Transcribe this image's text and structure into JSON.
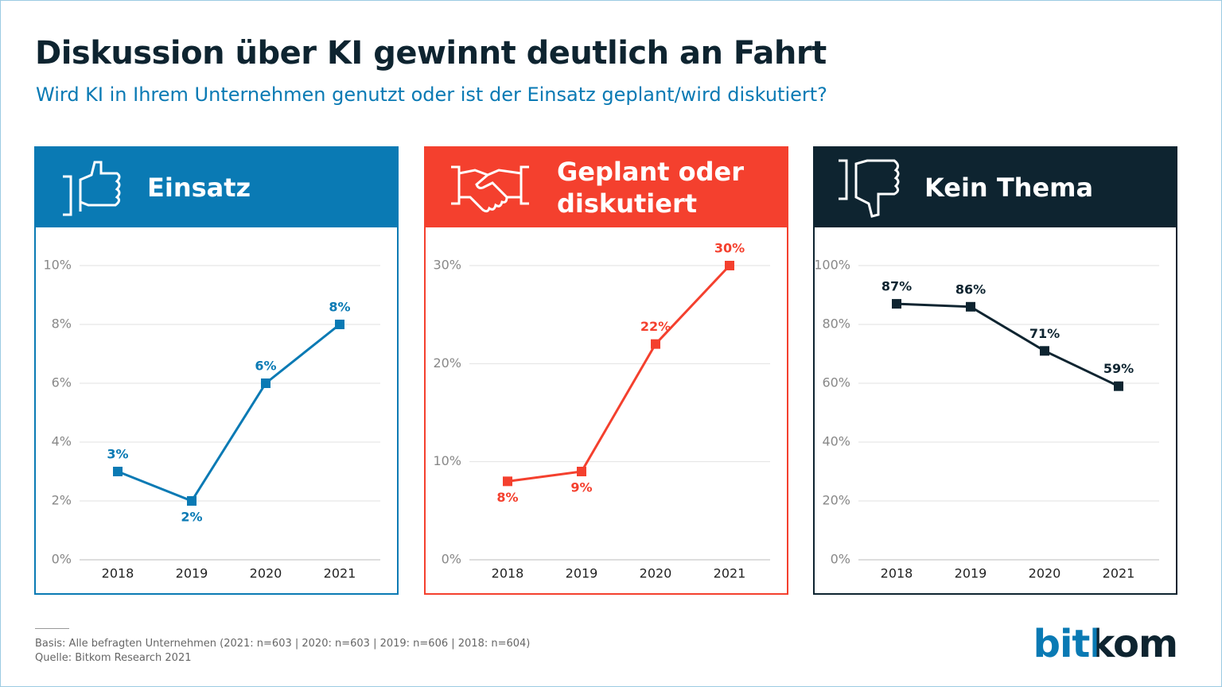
{
  "title": "Diskussion über KI gewinnt deutlich an Fahrt",
  "subtitle": "Wird KI in Ihrem Unternehmen genutzt oder ist der Einsatz geplant/wird diskutiert?",
  "notes": [
    "Basis: Alle befragten Unternehmen (2021: n=603 | 2020: n=603 | 2019: n=606 | 2018: n=604)",
    "Quelle: Bitkom Research 2021"
  ],
  "logo": "bitkom",
  "chart_data": [
    {
      "type": "line",
      "title": "Einsatz",
      "color": "#0a7ab4",
      "categories": [
        "2018",
        "2019",
        "2020",
        "2021"
      ],
      "values": [
        3,
        2,
        6,
        8
      ],
      "value_labels": [
        "3%",
        "2%",
        "6%",
        "8%"
      ],
      "ylim": [
        0,
        10
      ],
      "yticks": [
        {
          "value": 0,
          "label": "0%"
        },
        {
          "value": 2,
          "label": "2%"
        },
        {
          "value": 4,
          "label": "4%"
        },
        {
          "value": 6,
          "label": "6%"
        },
        {
          "value": 8,
          "label": "8%"
        },
        {
          "value": 10,
          "label": "10%"
        }
      ],
      "grid": true
    },
    {
      "type": "line",
      "title": "Geplant oder diskutiert",
      "color": "#f4402e",
      "categories": [
        "2018",
        "2019",
        "2020",
        "2021"
      ],
      "values": [
        8,
        9,
        22,
        30
      ],
      "value_labels": [
        "8%",
        "9%",
        "22%",
        "30%"
      ],
      "ylim": [
        0,
        30
      ],
      "yticks": [
        {
          "value": 0,
          "label": "0%"
        },
        {
          "value": 10,
          "label": "10%"
        },
        {
          "value": 20,
          "label": "20%"
        },
        {
          "value": 30,
          "label": "30%"
        }
      ],
      "grid": true
    },
    {
      "type": "line",
      "title": "Kein Thema",
      "color": "#0e2430",
      "categories": [
        "2018",
        "2019",
        "2020",
        "2021"
      ],
      "values": [
        87,
        86,
        71,
        59
      ],
      "value_labels": [
        "87%",
        "86%",
        "71%",
        "59%"
      ],
      "ylim": [
        0,
        100
      ],
      "yticks": [
        {
          "value": 0,
          "label": "0%"
        },
        {
          "value": 20,
          "label": "20%"
        },
        {
          "value": 40,
          "label": "40%"
        },
        {
          "value": 60,
          "label": "60%"
        },
        {
          "value": 80,
          "label": "80%"
        },
        {
          "value": 100,
          "label": "100%"
        }
      ],
      "grid": true
    }
  ]
}
